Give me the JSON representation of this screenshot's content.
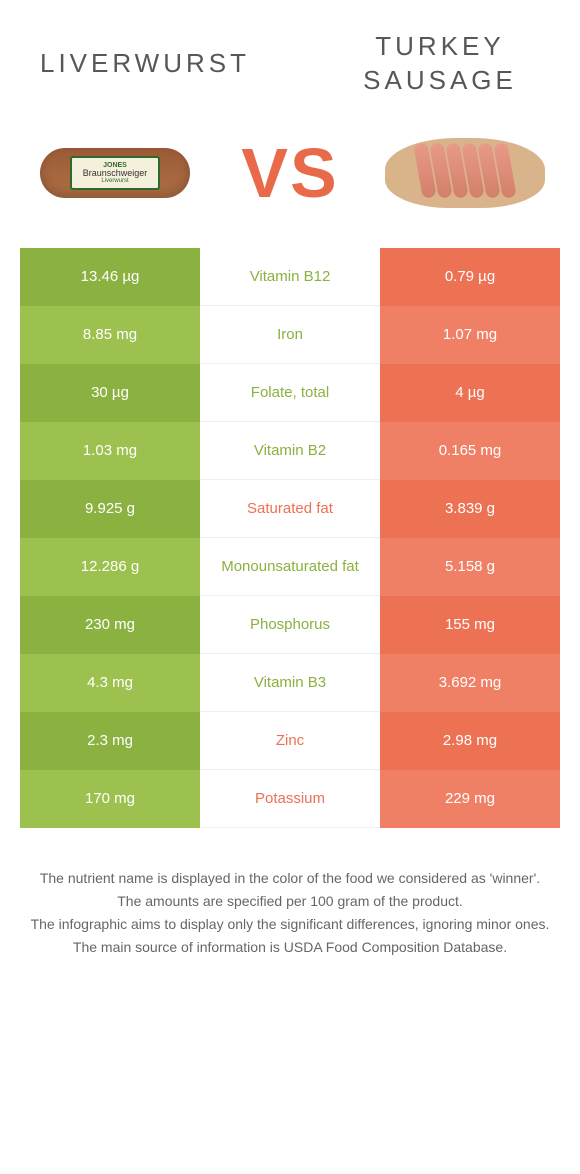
{
  "colors": {
    "green_dark": "#8bb140",
    "green_light": "#9cc14e",
    "orange_dark": "#ed7153",
    "orange_light": "#f08065",
    "green_text": "#8bb140",
    "orange_text": "#ed7153"
  },
  "header": {
    "left_title": "LIVERWURST",
    "right_title": "TURKEY SAUSAGE",
    "vs": "VS",
    "left_product_label": "Braunschweiger",
    "left_product_sub": "Liverwurst",
    "left_brand": "JONES"
  },
  "rows": [
    {
      "left": "13.46 µg",
      "mid": "Vitamin B12",
      "right": "0.79 µg",
      "winner": "left"
    },
    {
      "left": "8.85 mg",
      "mid": "Iron",
      "right": "1.07 mg",
      "winner": "left"
    },
    {
      "left": "30 µg",
      "mid": "Folate, total",
      "right": "4 µg",
      "winner": "left"
    },
    {
      "left": "1.03 mg",
      "mid": "Vitamin B2",
      "right": "0.165 mg",
      "winner": "left"
    },
    {
      "left": "9.925 g",
      "mid": "Saturated fat",
      "right": "3.839 g",
      "winner": "right"
    },
    {
      "left": "12.286 g",
      "mid": "Monounsaturated fat",
      "right": "5.158 g",
      "winner": "left"
    },
    {
      "left": "230 mg",
      "mid": "Phosphorus",
      "right": "155 mg",
      "winner": "left"
    },
    {
      "left": "4.3 mg",
      "mid": "Vitamin B3",
      "right": "3.692 mg",
      "winner": "left"
    },
    {
      "left": "2.3 mg",
      "mid": "Zinc",
      "right": "2.98 mg",
      "winner": "right"
    },
    {
      "left": "170 mg",
      "mid": "Potassium",
      "right": "229 mg",
      "winner": "right"
    }
  ],
  "footer": {
    "line1": "The nutrient name is displayed in the color of the food we considered as 'winner'.",
    "line2": "The amounts are specified per 100 gram of the product.",
    "line3": "The infographic aims to display only the significant differences, ignoring minor ones.",
    "line4": "The main source of information is USDA Food Composition Database."
  }
}
